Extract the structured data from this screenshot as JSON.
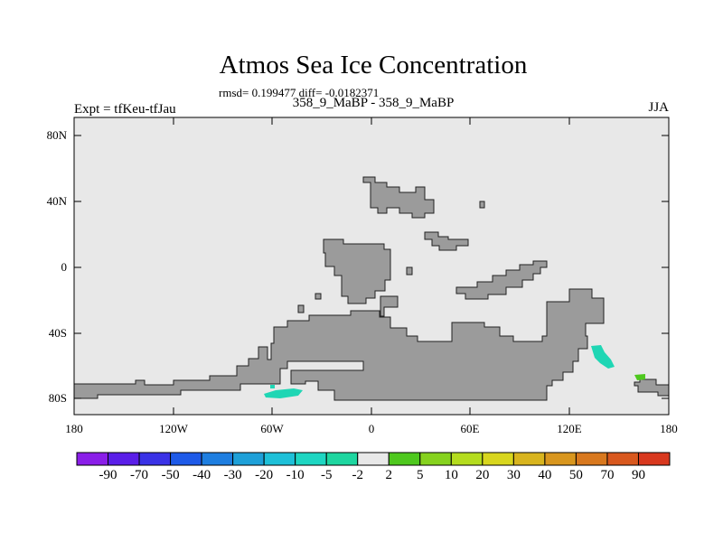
{
  "title": "Atmos Sea Ice Concentration",
  "rmsd_text": "rmsd= 0.199477 diff= -0.0182371",
  "subtitle": "358_9_MaBP - 358_9_MaBP",
  "left_label": "Expt = tfKeu-tfJau",
  "right_label": "JJA",
  "y_ticks": [
    "80N",
    "40N",
    "0",
    "40S",
    "80S"
  ],
  "x_ticks": [
    "180",
    "120W",
    "60W",
    "0",
    "60E",
    "120E",
    "180"
  ],
  "colors": {
    "land": "#9b9b9b",
    "ocean": "#e8e8e8",
    "anomaly_negative": "#1fd6b4",
    "anomaly_positive": "#4ec81e"
  },
  "colorbar": {
    "labels": [
      "-90",
      "-70",
      "-50",
      "-40",
      "-30",
      "-20",
      "-10",
      "-5",
      "-2",
      "2",
      "5",
      "10",
      "20",
      "30",
      "40",
      "50",
      "70",
      "90"
    ],
    "colors": [
      "#8a1ee8",
      "#5a1ee8",
      "#3a32e6",
      "#1e5ae8",
      "#1e7ee0",
      "#1ea0d8",
      "#1ec0d8",
      "#1ed6c2",
      "#1ed6a0",
      "#e8e8e8",
      "#4ec81e",
      "#86d21e",
      "#b4dc1e",
      "#d8d61e",
      "#d8b41e",
      "#d8961e",
      "#d8781e",
      "#d8581e",
      "#d8381e"
    ]
  }
}
